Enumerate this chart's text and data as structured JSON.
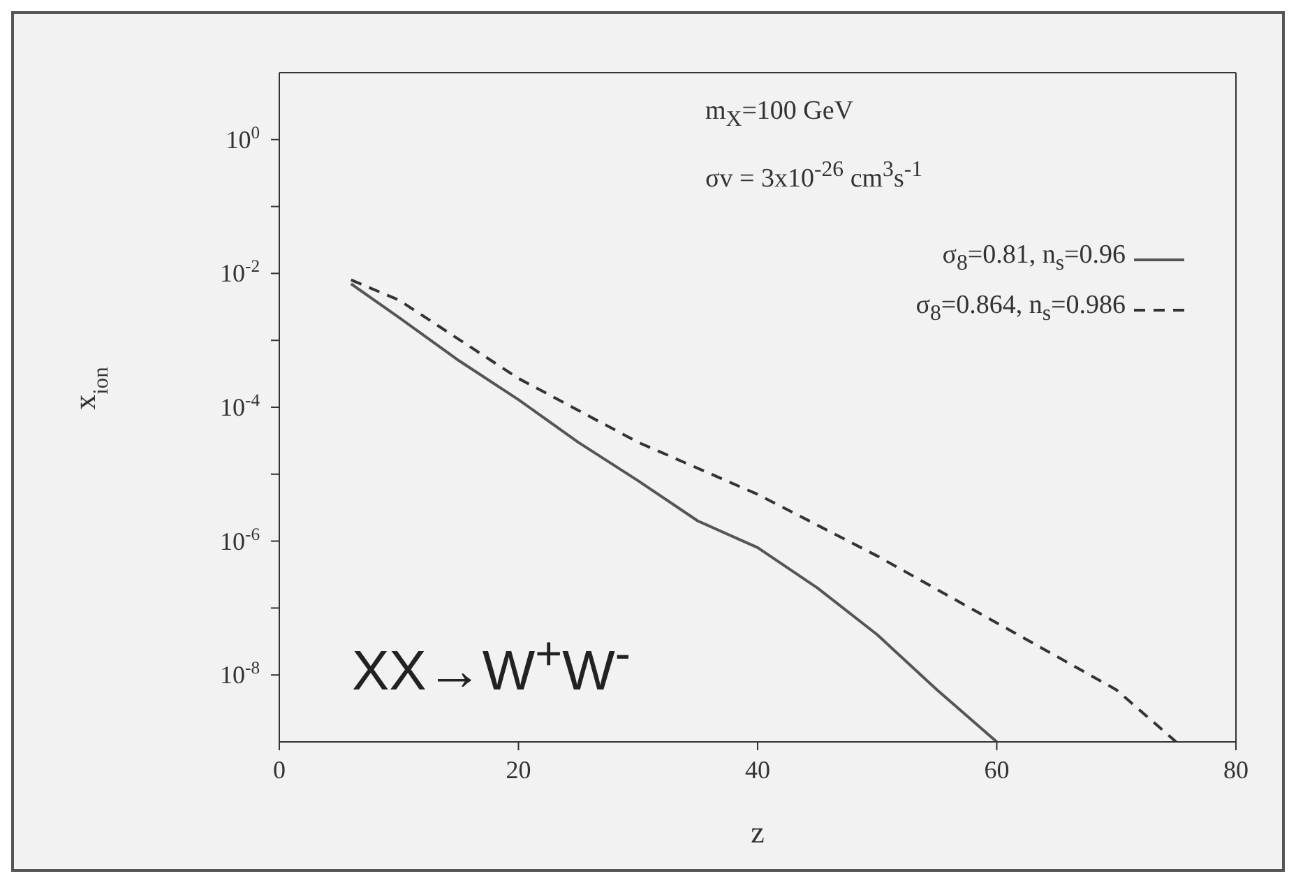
{
  "chart_data": {
    "type": "line",
    "xlabel": "z",
    "ylabel": "x$_{ion}$",
    "log": "y",
    "xlim": [
      0,
      80
    ],
    "xticks": [
      0,
      20,
      40,
      60,
      80
    ],
    "ylim": [
      1e-09,
      10
    ],
    "yticks": [
      {
        "value": 1,
        "label": "10$^{0}$"
      },
      {
        "value": 0.1,
        "label": null
      },
      {
        "value": 0.01,
        "label": "10$^{-2}$"
      },
      {
        "value": 0.001,
        "label": null
      },
      {
        "value": 0.0001,
        "label": "10$^{-4}$"
      },
      {
        "value": 1e-05,
        "label": null
      },
      {
        "value": 1e-06,
        "label": "10$^{-6}$"
      },
      {
        "value": 1e-07,
        "label": null
      },
      {
        "value": 1e-08,
        "label": "10$^{-8}$"
      }
    ],
    "legend": "top right",
    "annotations": [
      "m$_{X}$=100 GeV",
      "σv = 3x10$^{-26}$ cm$^{3}$s$^{-1}$",
      "XX→W$^{+}$W$^{-}$"
    ],
    "series": [
      {
        "name": "σ$_{8}$=0.81, n$_{s}$=0.96",
        "color": "#555555",
        "line_style": "solid",
        "x": [
          6,
          10,
          15,
          20,
          25,
          30,
          35,
          40,
          45,
          50,
          55,
          60
        ],
        "values": [
          0.007,
          0.0022,
          0.0005,
          0.00013,
          3e-05,
          8e-06,
          2e-06,
          8e-07,
          2e-07,
          4e-08,
          6e-09,
          1e-09
        ]
      },
      {
        "name": "σ$_{8}$=0.864, n$_{s}$=0.986",
        "color": "#333333",
        "line_style": "dashed",
        "x": [
          6,
          10,
          20,
          30,
          40,
          50,
          60,
          70,
          75
        ],
        "values": [
          0.008,
          0.004,
          0.00027,
          3e-05,
          5e-06,
          6e-07,
          6e-08,
          6e-09,
          1e-09
        ]
      }
    ]
  }
}
